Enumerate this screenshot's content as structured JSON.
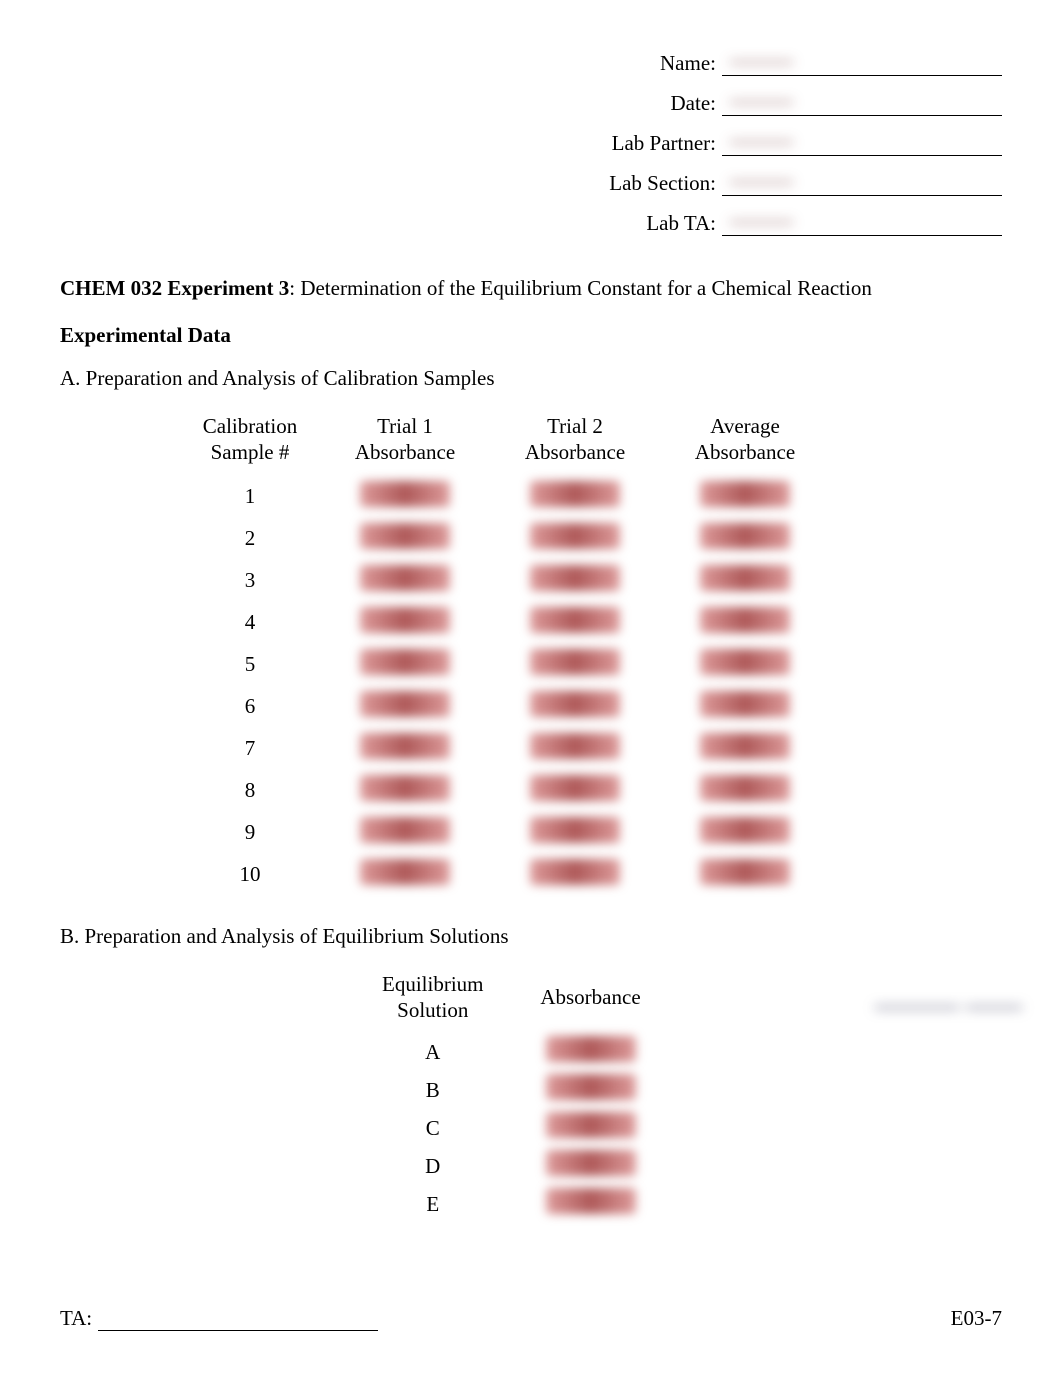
{
  "header": {
    "name_label": "Name:",
    "date_label": "Date:",
    "partner_label": "Lab Partner:",
    "section_label": "Lab Section:",
    "ta_label": "Lab TA:",
    "name_value": "———",
    "date_value": "———",
    "partner_value": "———",
    "section_value": "———",
    "ta_value": "———"
  },
  "title": {
    "bold": "CHEM 032 Experiment 3",
    "rest": ": Determination of the Equilibrium Constant for a Chemical Reaction"
  },
  "section_a_heading": "Experimental Data",
  "section_a_sub": "A. Preparation and Analysis of Calibration Samples",
  "calib_table": {
    "col1_line1": "Calibration",
    "col1_line2": "Sample #",
    "col2_line1": "Trial 1",
    "col2_line2": "Absorbance",
    "col3_line1": "Trial 2",
    "col3_line2": "Absorbance",
    "col4_line1": "Average",
    "col4_line2": "Absorbance",
    "samples": [
      "1",
      "2",
      "3",
      "4",
      "5",
      "6",
      "7",
      "8",
      "9",
      "10"
    ]
  },
  "section_b_sub": "B. Preparation and Analysis of Equilibrium Solutions",
  "eq_table": {
    "col1_line1": "Equilibrium",
    "col1_line2": "Solution",
    "col2": "Absorbance",
    "rows": [
      "A",
      "B",
      "C",
      "D",
      "E"
    ]
  },
  "side_annotation": "——— ——",
  "footer": {
    "ta_label": "TA:",
    "page_code": "E03-7"
  }
}
